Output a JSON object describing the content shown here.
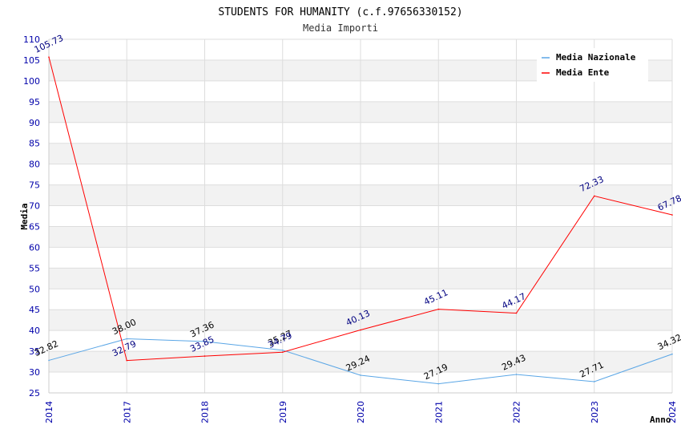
{
  "chart_data": {
    "type": "line",
    "title": "STUDENTS FOR HUMANITY (c.f.97656330152)",
    "subtitle": "Media Importi",
    "xlabel": "Anno",
    "ylabel": "Media",
    "ylim": [
      25,
      110
    ],
    "ytick_step": 5,
    "x": [
      "2014",
      "2017",
      "2018",
      "2019",
      "2020",
      "2021",
      "2022",
      "2023",
      "2024"
    ],
    "series": [
      {
        "name": "Media Nazionale",
        "color": "#5aa6e6",
        "label_color": "#000000",
        "values": [
          32.82,
          38.0,
          37.36,
          35.27,
          29.24,
          27.19,
          29.43,
          27.71,
          34.32
        ],
        "labels": [
          "32.82",
          "38.00",
          "37.36",
          "35.27",
          "29.24",
          "27.19",
          "29.43",
          "27.71",
          "34.32"
        ]
      },
      {
        "name": "Media Ente",
        "color": "#ff0000",
        "label_color": "#000080",
        "values": [
          105.73,
          32.79,
          33.85,
          34.79,
          40.13,
          45.11,
          44.17,
          72.33,
          67.78
        ],
        "labels": [
          "105.73",
          "32.79",
          "33.85",
          "34.79",
          "40.13",
          "45.11",
          "44.17",
          "72.33",
          "67.78"
        ]
      }
    ],
    "grid": true,
    "legend_position": "top-right"
  }
}
